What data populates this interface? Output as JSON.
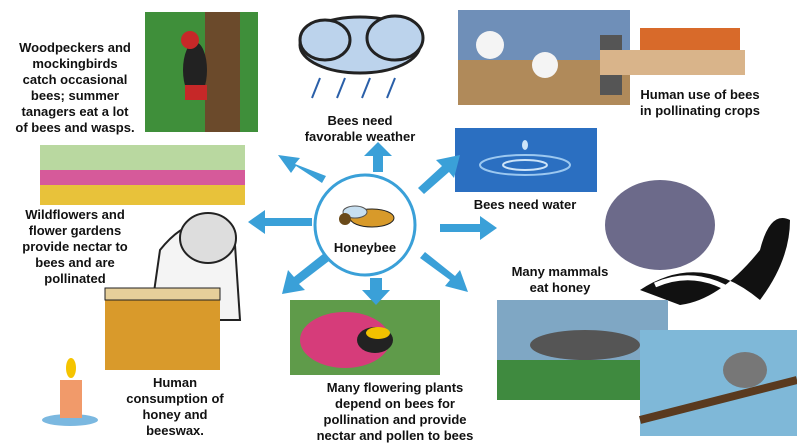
{
  "center": {
    "label": "Honeybee"
  },
  "nodes": [
    {
      "lines": [
        "Woodpeckers and",
        "mockingbirds",
        "catch occasional",
        "bees; summer",
        "tanagers eat a lot",
        "of bees and wasps."
      ]
    },
    {
      "lines": [
        "Bees need",
        "favorable weather"
      ]
    },
    {
      "lines": [
        "Human use of bees",
        "in pollinating crops"
      ]
    },
    {
      "lines": [
        "Wildflowers and",
        "flower gardens",
        "provide nectar to",
        "bees and are",
        "pollinated"
      ]
    },
    {
      "lines": [
        "Bees need water"
      ]
    },
    {
      "lines": [
        "Many mammals",
        "eat honey"
      ]
    },
    {
      "lines": [
        "Human",
        "consumption of",
        "honey and",
        "beeswax."
      ]
    },
    {
      "lines": [
        "Many flowering plants",
        "depend on bees for",
        "pollination and provide",
        "nectar and pollen to bees"
      ]
    }
  ]
}
